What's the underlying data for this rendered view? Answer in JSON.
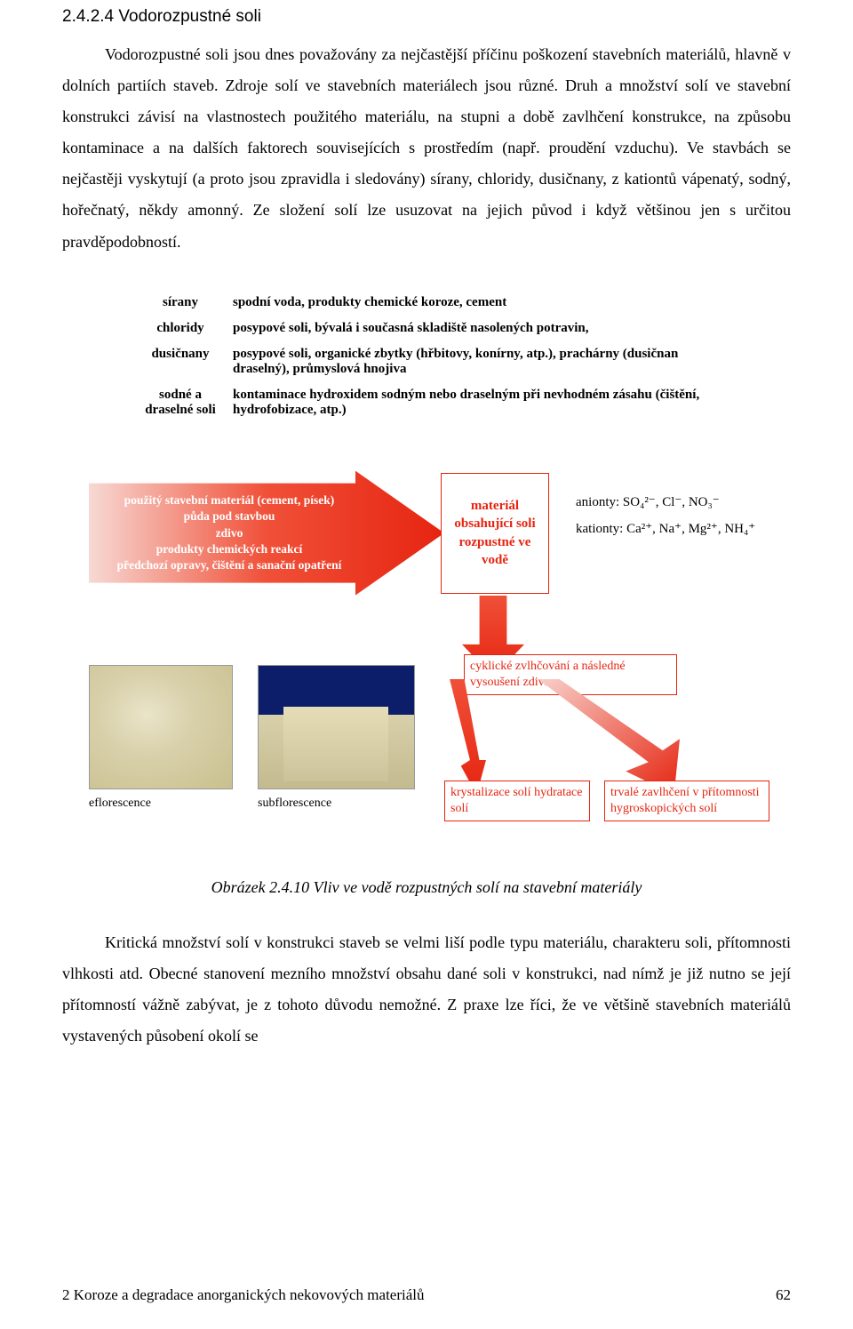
{
  "heading": "2.4.2.4 Vodorozpustné soli",
  "paragraphs": {
    "p1": "Vodorozpustné soli jsou dnes považovány za nejčastější příčinu poškození stavebních materiálů, hlavně v dolních partiích staveb. Zdroje solí ve stavebních materiálech jsou různé. Druh a množství solí ve stavební konstrukci závisí na vlastnostech použitého materiálu, na stupni a době zavlhčení konstrukce, na způsobu kontaminace a na dalších faktorech souvisejících s prostředím (např. proudění vzduchu). Ve stavbách se nejčastěji vyskytují (a proto jsou zpravidla i sledovány) sírany, chloridy, dusičnany, z kationtů vápenatý, sodný, hořečnatý, někdy amonný. Ze složení solí lze usuzovat na jejich původ i když většinou jen s určitou pravděpodobností."
  },
  "salt_table": {
    "rows": [
      {
        "label": "sírany",
        "text": "spodní voda, produkty chemické koroze, cement"
      },
      {
        "label": "chloridy",
        "text": "posypové soli, bývalá i současná skladiště nasolených potravin,"
      },
      {
        "label": "dusičnany",
        "text": "posypové soli, organické zbytky (hřbitovy, konírny, atp.), prachárny (dusičnan draselný), průmyslová hnojiva"
      },
      {
        "label": "sodné a draselné soli",
        "text": "kontaminace hydroxidem sodným nebo draselným při nevhodném zásahu (čištění, hydrofobizace, atp.)"
      }
    ]
  },
  "diagram": {
    "arrow_in_lines": [
      "použitý stavební materiál (cement, písek)",
      "půda pod stavbou",
      "zdivo",
      "produkty chemických reakcí",
      "předchozí opravy, čištění a sanační opatření"
    ],
    "center_box": "materiál obsahující soli rozpustné ve vodě",
    "anions_label": "anionty: SO₄²⁻, Cl⁻, NO₃⁻",
    "cations_label": "kationty: Ca²⁺, Na⁺, Mg²⁺, NH₄⁺",
    "cycle_box": "cyklické zvlhčování a následné vysoušení zdiva",
    "result1": "krystalizace solí hydratace solí",
    "result2": "trvalé zavlhčení v přítomnosti hygroskopických solí",
    "photo1_label": "eflorescence",
    "photo2_label": "subflorescence",
    "colors": {
      "accent": "#e62410",
      "arrow_gradient_start": "#f7d9d4",
      "arrow_gradient_end": "#e62410"
    }
  },
  "caption": "Obrázek 2.4.10 Vliv ve vodě rozpustných solí na stavební materiály",
  "paragraphs2": {
    "p2": "Kritická množství solí v konstrukci staveb se velmi liší podle typu materiálu, charakteru soli, přítomnosti vlhkosti atd. Obecné stanovení mezního množství obsahu dané soli v konstrukci, nad nímž je již nutno se její přítomností vážně zabývat, je z tohoto důvodu nemožné. Z praxe lze říci, že ve většině stavebních materiálů vystavených působení okolí se"
  },
  "footer": {
    "chapter": "2  Koroze a degradace anorganických nekovových materiálů",
    "page": "62"
  }
}
